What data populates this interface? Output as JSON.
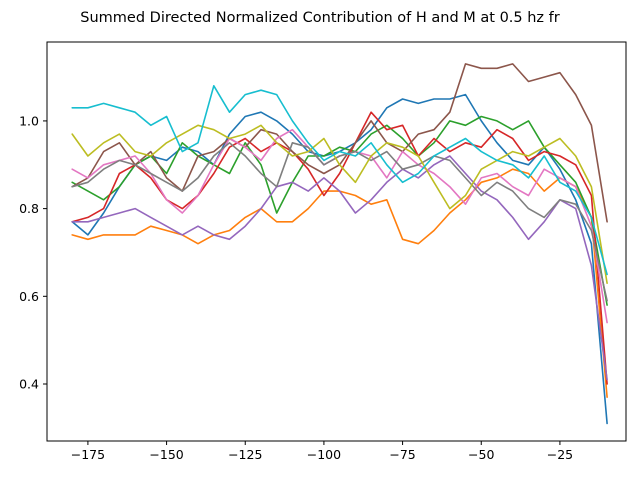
{
  "chart_data": {
    "type": "line",
    "title": "Summed Directed Normalized Contribution of H and M at 0.5 hz fr",
    "xlabel": "",
    "ylabel": "",
    "xlim": [
      -188,
      -4
    ],
    "ylim": [
      0.27,
      1.18
    ],
    "xticks": [
      -175,
      -150,
      -125,
      -100,
      -75,
      -50,
      -25
    ],
    "xtick_labels": [
      "−175",
      "−150",
      "−125",
      "−100",
      "−75",
      "−50",
      "−25"
    ],
    "yticks": [
      0.4,
      0.6,
      0.8,
      1.0
    ],
    "ytick_labels": [
      "0.4",
      "0.6",
      "0.8",
      "1.0"
    ],
    "grid": false,
    "legend": "none",
    "x": [
      -180,
      -175,
      -170,
      -165,
      -160,
      -155,
      -150,
      -145,
      -140,
      -135,
      -130,
      -125,
      -120,
      -115,
      -110,
      -105,
      -100,
      -95,
      -90,
      -85,
      -80,
      -75,
      -70,
      -65,
      -60,
      -55,
      -50,
      -45,
      -40,
      -35,
      -30,
      -25,
      -20,
      -15,
      -10
    ],
    "series": [
      {
        "color": "#1f77b4",
        "values": [
          0.77,
          0.74,
          0.79,
          0.85,
          0.9,
          0.92,
          0.91,
          0.94,
          0.93,
          0.9,
          0.97,
          1.01,
          1.02,
          1.0,
          0.97,
          0.93,
          0.92,
          0.93,
          0.95,
          0.98,
          1.03,
          1.05,
          1.04,
          1.05,
          1.05,
          1.06,
          1.0,
          0.95,
          0.91,
          0.9,
          0.94,
          0.89,
          0.82,
          0.72,
          0.31
        ]
      },
      {
        "color": "#ff7f0e",
        "values": [
          0.74,
          0.73,
          0.74,
          0.74,
          0.74,
          0.76,
          0.75,
          0.74,
          0.72,
          0.74,
          0.75,
          0.78,
          0.8,
          0.77,
          0.77,
          0.8,
          0.84,
          0.84,
          0.83,
          0.81,
          0.82,
          0.73,
          0.72,
          0.75,
          0.79,
          0.82,
          0.86,
          0.87,
          0.89,
          0.88,
          0.84,
          0.87,
          0.85,
          0.78,
          0.37
        ]
      },
      {
        "color": "#2ca02c",
        "values": [
          0.86,
          0.84,
          0.82,
          0.85,
          0.9,
          0.92,
          0.88,
          0.95,
          0.92,
          0.9,
          0.88,
          0.95,
          0.9,
          0.79,
          0.86,
          0.92,
          0.92,
          0.94,
          0.93,
          0.97,
          0.99,
          0.96,
          0.92,
          0.95,
          1.0,
          0.99,
          1.01,
          1.0,
          0.98,
          1.0,
          0.94,
          0.9,
          0.86,
          0.78,
          0.58
        ]
      },
      {
        "color": "#d62728",
        "values": [
          0.77,
          0.78,
          0.8,
          0.88,
          0.9,
          0.87,
          0.82,
          0.8,
          0.83,
          0.88,
          0.94,
          0.96,
          0.93,
          0.95,
          0.93,
          0.89,
          0.83,
          0.88,
          0.95,
          1.02,
          0.98,
          0.99,
          0.92,
          0.96,
          0.93,
          0.95,
          0.94,
          0.98,
          0.96,
          0.91,
          0.93,
          0.92,
          0.9,
          0.83,
          0.4
        ]
      },
      {
        "color": "#9467bd",
        "values": [
          0.77,
          0.77,
          0.78,
          0.79,
          0.8,
          0.78,
          0.76,
          0.74,
          0.76,
          0.74,
          0.73,
          0.76,
          0.8,
          0.85,
          0.86,
          0.84,
          0.87,
          0.84,
          0.79,
          0.82,
          0.86,
          0.89,
          0.87,
          0.9,
          0.92,
          0.88,
          0.84,
          0.82,
          0.78,
          0.73,
          0.77,
          0.82,
          0.8,
          0.67,
          0.41
        ]
      },
      {
        "color": "#8c564b",
        "values": [
          0.85,
          0.87,
          0.93,
          0.95,
          0.9,
          0.93,
          0.87,
          0.84,
          0.92,
          0.93,
          0.96,
          0.94,
          0.98,
          0.97,
          0.93,
          0.9,
          0.88,
          0.9,
          0.95,
          1.0,
          0.95,
          0.93,
          0.97,
          0.98,
          1.02,
          1.13,
          1.12,
          1.12,
          1.13,
          1.09,
          1.1,
          1.11,
          1.06,
          0.99,
          0.77
        ]
      },
      {
        "color": "#e377c2",
        "values": [
          0.89,
          0.87,
          0.9,
          0.91,
          0.92,
          0.88,
          0.82,
          0.79,
          0.83,
          0.9,
          0.96,
          0.94,
          0.91,
          0.96,
          0.98,
          0.94,
          0.9,
          0.92,
          0.93,
          0.92,
          0.87,
          0.93,
          0.9,
          0.88,
          0.85,
          0.81,
          0.87,
          0.88,
          0.85,
          0.83,
          0.89,
          0.87,
          0.85,
          0.76,
          0.54
        ]
      },
      {
        "color": "#7f7f7f",
        "values": [
          0.85,
          0.86,
          0.89,
          0.91,
          0.9,
          0.88,
          0.86,
          0.84,
          0.87,
          0.92,
          0.95,
          0.92,
          0.88,
          0.85,
          0.95,
          0.94,
          0.9,
          0.92,
          0.93,
          0.91,
          0.93,
          0.89,
          0.9,
          0.92,
          0.91,
          0.87,
          0.83,
          0.86,
          0.84,
          0.8,
          0.78,
          0.82,
          0.81,
          0.75,
          0.59
        ]
      },
      {
        "color": "#bcbd22",
        "values": [
          0.97,
          0.92,
          0.95,
          0.97,
          0.93,
          0.92,
          0.95,
          0.97,
          0.99,
          0.98,
          0.96,
          0.97,
          0.99,
          0.95,
          0.92,
          0.93,
          0.96,
          0.9,
          0.86,
          0.92,
          0.95,
          0.94,
          0.92,
          0.86,
          0.8,
          0.83,
          0.89,
          0.91,
          0.93,
          0.92,
          0.94,
          0.96,
          0.92,
          0.85,
          0.63
        ]
      },
      {
        "color": "#17becf",
        "values": [
          1.03,
          1.03,
          1.04,
          1.03,
          1.02,
          0.99,
          1.01,
          0.93,
          0.95,
          1.08,
          1.02,
          1.06,
          1.07,
          1.06,
          1.0,
          0.95,
          0.91,
          0.93,
          0.92,
          0.95,
          0.9,
          0.86,
          0.88,
          0.92,
          0.94,
          0.96,
          0.93,
          0.91,
          0.9,
          0.87,
          0.92,
          0.86,
          0.84,
          0.78,
          0.65
        ]
      }
    ]
  }
}
